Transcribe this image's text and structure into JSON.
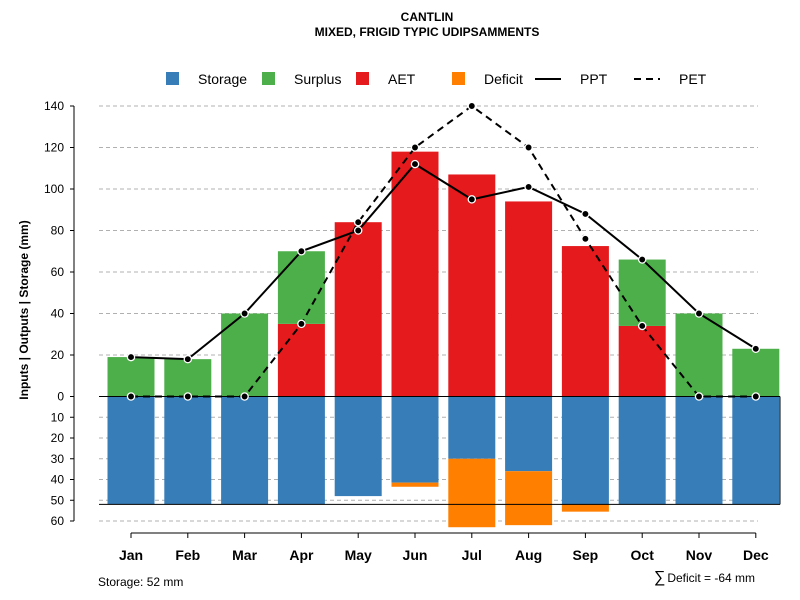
{
  "title": "CANTLIN",
  "subtitle": "MIXED, FRIGID TYPIC UDIPSAMMENTS",
  "ylabel": "Inputs | Outputs | Storage    (mm)",
  "storage_note": "Storage: 52 mm",
  "deficit_symbol": "∑",
  "deficit_note": "Deficit = -64 mm",
  "colors": {
    "storage": "#377EB8",
    "surplus": "#4DAF4A",
    "aet": "#E41A1C",
    "deficit": "#FF7F00",
    "line": "#000000",
    "grid": "#b0b0b0"
  },
  "legend": [
    {
      "key": "storage",
      "label": "Storage",
      "kind": "box"
    },
    {
      "key": "surplus",
      "label": "Surplus",
      "kind": "box"
    },
    {
      "key": "aet",
      "label": "AET",
      "kind": "box"
    },
    {
      "key": "deficit",
      "label": "Deficit",
      "kind": "box"
    },
    {
      "key": "ppt",
      "label": "PPT",
      "kind": "solid"
    },
    {
      "key": "pet",
      "label": "PET",
      "kind": "dashed"
    }
  ],
  "chart_data": {
    "type": "bar",
    "title": "CANTLIN",
    "subtitle": "MIXED, FRIGID TYPIC UDIPSAMMENTS",
    "categories": [
      "Jan",
      "Feb",
      "Mar",
      "Apr",
      "May",
      "Jun",
      "Jul",
      "Aug",
      "Sep",
      "Oct",
      "Nov",
      "Dec"
    ],
    "upper_ylim": [
      0,
      140
    ],
    "upper_ticks": [
      0,
      20,
      40,
      60,
      80,
      100,
      120,
      140
    ],
    "lower_ylim": [
      0,
      60
    ],
    "lower_ticks": [
      0,
      10,
      20,
      30,
      40,
      50,
      60
    ],
    "storage_capacity": 52,
    "series": [
      {
        "name": "AET",
        "kind": "bar-up",
        "values": [
          0,
          0,
          0,
          35,
          84,
          118,
          107,
          94,
          72.5,
          34,
          0,
          0
        ]
      },
      {
        "name": "Surplus",
        "kind": "bar-up-stacked",
        "values": [
          19,
          18,
          40,
          35,
          0,
          0,
          0,
          0,
          0,
          32,
          40,
          23
        ]
      },
      {
        "name": "Storage",
        "kind": "bar-down",
        "values": [
          52,
          52,
          52,
          52,
          48,
          41.5,
          30,
          36,
          52,
          52,
          52,
          52
        ]
      },
      {
        "name": "Deficit",
        "kind": "bar-down-stacked",
        "values": [
          0,
          0,
          0,
          0,
          0,
          2,
          33,
          26,
          3.5,
          0,
          0,
          0
        ]
      },
      {
        "name": "PPT",
        "kind": "line-solid",
        "values": [
          19,
          18,
          40,
          70,
          80,
          112,
          95,
          101,
          88,
          66,
          40,
          23
        ]
      },
      {
        "name": "PET",
        "kind": "line-dashed",
        "values": [
          0,
          0,
          0,
          35,
          84,
          120,
          140,
          120,
          76,
          34,
          0,
          0
        ]
      }
    ]
  }
}
